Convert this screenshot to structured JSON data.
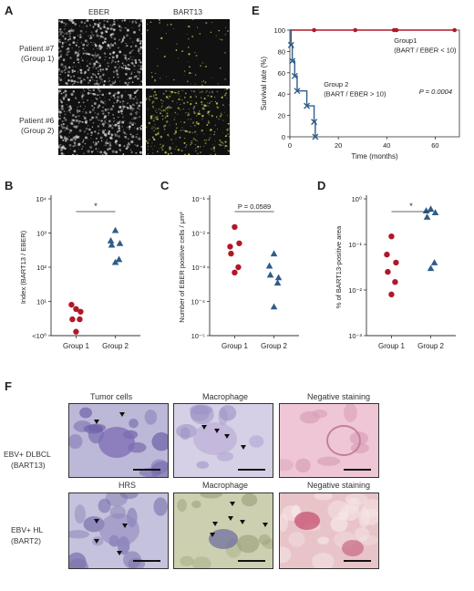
{
  "panels": {
    "A": {
      "letter": "A",
      "col_headers": [
        "EBER",
        "BART13"
      ],
      "row_labels": [
        [
          "Patient #7",
          "(Group 1)"
        ],
        [
          "Patient #6",
          "(Group 2)"
        ]
      ]
    },
    "B": {
      "letter": "B",
      "sig": "*"
    },
    "C": {
      "letter": "C",
      "pvalue": "P = 0.0589"
    },
    "D": {
      "letter": "D",
      "sig": "*"
    },
    "E": {
      "letter": "E",
      "annot_g1": [
        "Group1",
        "(BART / EBER < 10)"
      ],
      "annot_g2": [
        "Group 2",
        "(BART / EBER > 10)"
      ],
      "pvalue": "P = 0.0004"
    },
    "F": {
      "letter": "F",
      "row_labels": [
        [
          "EBV+ DLBCL",
          "(BART13)"
        ],
        [
          "EBV+ HL",
          "(BART2)"
        ]
      ],
      "col_titles": [
        [
          "Tumor cells",
          "Macrophage",
          "Negative staining"
        ],
        [
          "HRS",
          "Macrophage",
          "Negative staining"
        ]
      ]
    }
  },
  "chart_data": [
    {
      "id": "E",
      "type": "line",
      "xlabel": "Time (months)",
      "ylabel": "Survival rate (%)",
      "xlim": [
        0,
        70
      ],
      "ylim": [
        0,
        100
      ],
      "xticks": [
        0,
        20,
        40,
        60
      ],
      "yticks": [
        0,
        20,
        40,
        60,
        80,
        100
      ],
      "series": [
        {
          "name": "Group1",
          "color": "#b0182a",
          "marker": "circle",
          "x": [
            0,
            68
          ],
          "y": [
            100,
            100
          ],
          "censor_x": [
            10,
            27,
            43,
            44,
            68
          ]
        },
        {
          "name": "Group 2",
          "color": "#2f5d8a",
          "marker": "x",
          "steps": [
            [
              0,
              100
            ],
            [
              0.5,
              86
            ],
            [
              1,
              71
            ],
            [
              2,
              57
            ],
            [
              3,
              43
            ],
            [
              7,
              29
            ],
            [
              10,
              14
            ],
            [
              10.5,
              0
            ]
          ],
          "censor_x": [
            0.5,
            1,
            2,
            3,
            7,
            10,
            10.5
          ]
        }
      ]
    },
    {
      "id": "B",
      "type": "scatter",
      "ylabel": "Index (BART13 / EBER)",
      "yscale": "log",
      "ytick_labels": [
        "<10⁰",
        "10¹",
        "10²",
        "10³",
        "10⁴"
      ],
      "ytick_exps": [
        0,
        1,
        2,
        3,
        4
      ],
      "categories": [
        "Group 1",
        "Group 2"
      ],
      "series": [
        {
          "name": "Group 1",
          "color": "#b0182a",
          "marker": "circle",
          "values": [
            6,
            8,
            5,
            3,
            3,
            1.3
          ]
        },
        {
          "name": "Group 2",
          "color": "#2f5d8a",
          "marker": "triangle",
          "values": [
            1200,
            600,
            500,
            450,
            170,
            140
          ]
        }
      ]
    },
    {
      "id": "C",
      "type": "scatter",
      "ylabel": "Number of EBER positive cells / μm²",
      "yscale": "log",
      "ytick_labels": [
        "10⁻⁵",
        "10⁻⁴",
        "10⁻³",
        "10⁻²",
        "10⁻¹"
      ],
      "ytick_exps": [
        -5,
        -4,
        -3,
        -2,
        -1
      ],
      "categories": [
        "Group 1",
        "Group 2"
      ],
      "series": [
        {
          "name": "Group 1",
          "color": "#b0182a",
          "marker": "circle",
          "values": [
            0.015,
            0.004,
            0.005,
            0.0025,
            0.001,
            0.0007
          ]
        },
        {
          "name": "Group 2",
          "color": "#2f5d8a",
          "marker": "triangle",
          "values": [
            0.0025,
            0.0011,
            0.0005,
            0.0006,
            0.00035,
            7e-05
          ]
        }
      ]
    },
    {
      "id": "D",
      "type": "scatter",
      "ylabel": "% of BART13-positive area",
      "yscale": "log",
      "ytick_labels": [
        "10⁻³",
        "10⁻²",
        "10⁻¹",
        "10⁰"
      ],
      "ytick_exps": [
        -3,
        -2,
        -1,
        0
      ],
      "categories": [
        "Group 1",
        "Group 2"
      ],
      "series": [
        {
          "name": "Group 1",
          "color": "#b0182a",
          "marker": "circle",
          "values": [
            0.15,
            0.06,
            0.04,
            0.025,
            0.015,
            0.008
          ]
        },
        {
          "name": "Group 2",
          "color": "#2f5d8a",
          "marker": "triangle",
          "values": [
            0.6,
            0.55,
            0.5,
            0.4,
            0.04,
            0.03
          ]
        }
      ]
    }
  ]
}
